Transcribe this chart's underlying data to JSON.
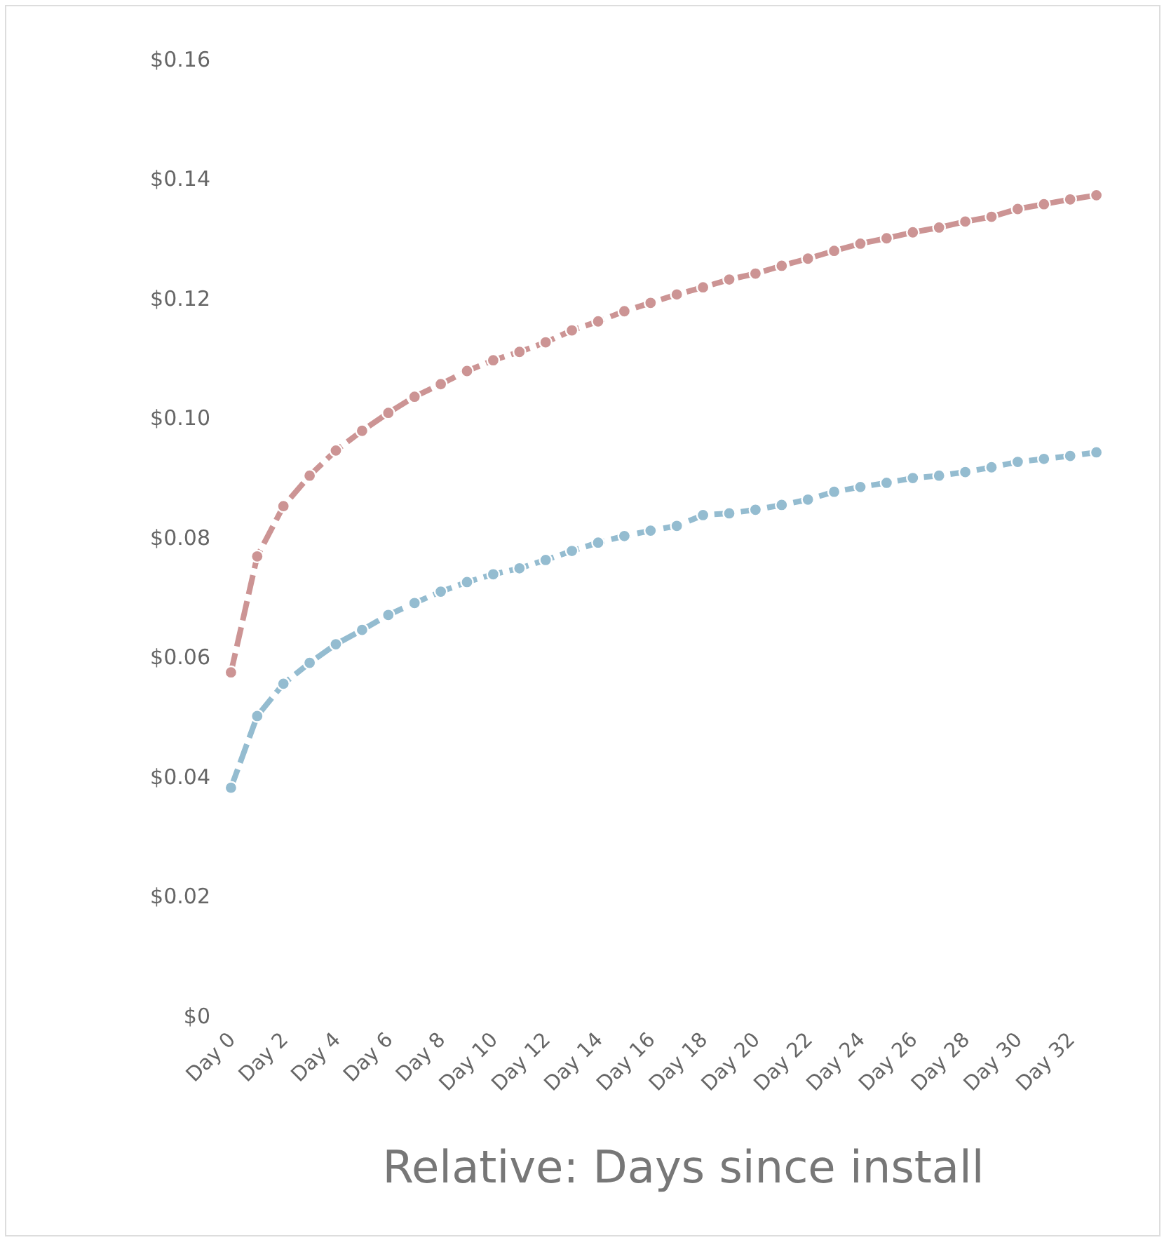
{
  "chart_data": {
    "type": "line",
    "xlabel": "Relative: Days since install",
    "categories": [
      "Day 0",
      null,
      "Day 2",
      null,
      "Day 4",
      null,
      "Day 6",
      null,
      "Day 8",
      null,
      "Day 10",
      null,
      "Day 12",
      null,
      "Day 14",
      null,
      "Day 16",
      null,
      "Day 18",
      null,
      "Day 20",
      null,
      "Day 22",
      null,
      "Day 24",
      null,
      "Day 26",
      null,
      "Day 28",
      null,
      "Day 30",
      null,
      "Day 32",
      null
    ],
    "series": [
      {
        "color": "#cc9494",
        "values": [
          0.0574,
          0.0768,
          0.0852,
          0.0903,
          0.0945,
          0.0978,
          0.1008,
          0.1035,
          0.1056,
          0.1078,
          0.1096,
          0.111,
          0.1126,
          0.1146,
          0.1161,
          0.1178,
          0.1192,
          0.1206,
          0.1218,
          0.1231,
          0.1241,
          0.1254,
          0.1266,
          0.1279,
          0.1291,
          0.13,
          0.131,
          0.1318,
          0.1328,
          0.1336,
          0.1349,
          0.1357,
          0.1365,
          0.1372
        ]
      },
      {
        "color": "#94bcd0",
        "values": [
          0.0381,
          0.0501,
          0.0555,
          0.059,
          0.0621,
          0.0645,
          0.067,
          0.069,
          0.0709,
          0.0725,
          0.0738,
          0.0748,
          0.0762,
          0.0777,
          0.0791,
          0.0802,
          0.0811,
          0.0819,
          0.0837,
          0.084,
          0.0846,
          0.0854,
          0.0863,
          0.0876,
          0.0884,
          0.0891,
          0.0899,
          0.0903,
          0.0909,
          0.0917,
          0.0926,
          0.0931,
          0.0936,
          0.0942
        ]
      }
    ],
    "ylim": [
      0,
      0.16
    ],
    "yticks": [
      {
        "value": 0,
        "label": "$0"
      },
      {
        "value": 0.02,
        "label": "$0.02"
      },
      {
        "value": 0.04,
        "label": "$0.04"
      },
      {
        "value": 0.06,
        "label": "$0.06"
      },
      {
        "value": 0.08,
        "label": "$0.08"
      },
      {
        "value": 0.1,
        "label": "$0.10"
      },
      {
        "value": 0.12,
        "label": "$0.12"
      },
      {
        "value": 0.14,
        "label": "$0.14"
      },
      {
        "value": 0.16,
        "label": "$0.16"
      }
    ],
    "grid": false,
    "marker": "circle",
    "line_style": "dashed"
  }
}
